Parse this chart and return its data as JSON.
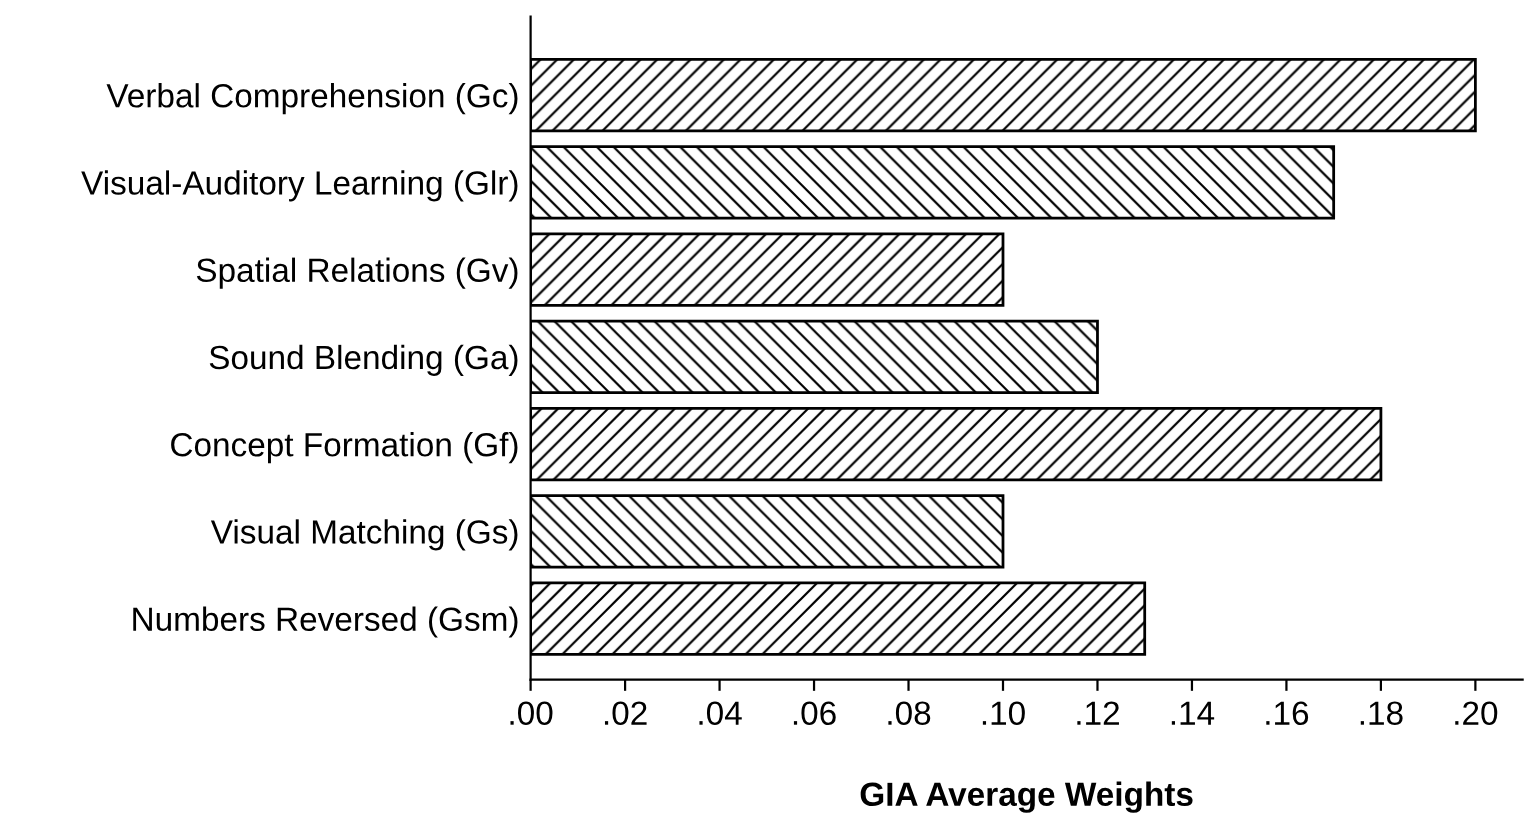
{
  "chart_data": {
    "type": "bar",
    "orientation": "horizontal",
    "xlabel": "GIA Average Weights",
    "categories": [
      "Verbal Comprehension (Gc)",
      "Visual-Auditory Learning (Glr)",
      "Spatial Relations (Gv)",
      "Sound Blending (Ga)",
      "Concept Formation (Gf)",
      "Visual Matching (Gs)",
      "Numbers Reversed (Gsm)"
    ],
    "values": [
      0.2,
      0.17,
      0.1,
      0.12,
      0.18,
      0.1,
      0.13
    ],
    "color": "#000000",
    "xlim": [
      0,
      0.21
    ],
    "xticks": [
      {
        "value": 0,
        "label": ".00"
      },
      {
        "value": 0.02,
        "label": ".02"
      },
      {
        "value": 0.04,
        "label": ".04"
      },
      {
        "value": 0.06,
        "label": ".06"
      },
      {
        "value": 0.08,
        "label": ".08"
      },
      {
        "value": 0.1,
        "label": ".10"
      },
      {
        "value": 0.12,
        "label": ".12"
      },
      {
        "value": 0.14,
        "label": ".14"
      },
      {
        "value": 0.16,
        "label": ".16"
      },
      {
        "value": 0.18,
        "label": ".18"
      },
      {
        "value": 0.2,
        "label": ".20"
      }
    ],
    "grid": false
  }
}
